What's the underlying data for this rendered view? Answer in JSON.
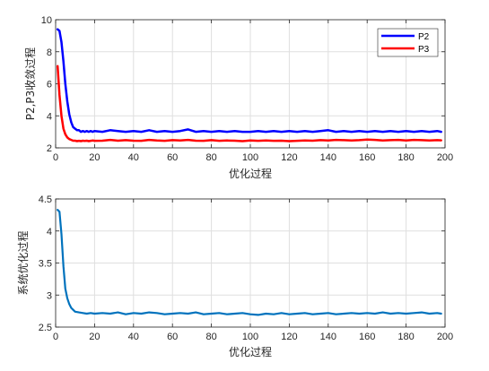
{
  "chart_data": [
    {
      "type": "line",
      "title": "",
      "xlabel": "优化过程",
      "ylabel": "P2,P3收敛过程",
      "xlim": [
        0,
        200
      ],
      "ylim": [
        2,
        10
      ],
      "xticks": [
        0,
        20,
        40,
        60,
        80,
        100,
        120,
        140,
        160,
        180,
        200
      ],
      "yticks": [
        2,
        4,
        6,
        8,
        10
      ],
      "grid": true,
      "legend_position": "top-right",
      "series": [
        {
          "name": "P2",
          "color": "#0000ff",
          "x": [
            1,
            2,
            3,
            4,
            5,
            6,
            7,
            8,
            9,
            10,
            11,
            12,
            13,
            14,
            15,
            16,
            17,
            18,
            19,
            20,
            24,
            28,
            32,
            36,
            40,
            44,
            48,
            52,
            56,
            60,
            64,
            68,
            72,
            76,
            80,
            84,
            88,
            92,
            96,
            100,
            104,
            108,
            112,
            116,
            120,
            124,
            128,
            132,
            136,
            140,
            144,
            148,
            152,
            156,
            160,
            164,
            168,
            172,
            176,
            180,
            184,
            188,
            192,
            196,
            198
          ],
          "y": [
            9.4,
            9.3,
            8.6,
            7.4,
            6.0,
            4.9,
            4.1,
            3.6,
            3.3,
            3.2,
            3.1,
            3.1,
            3.0,
            3.05,
            3.0,
            3.05,
            3.0,
            3.05,
            3.0,
            3.05,
            3.0,
            3.1,
            3.05,
            3.0,
            3.05,
            3.0,
            3.1,
            3.0,
            3.05,
            3.0,
            3.05,
            3.15,
            3.0,
            3.05,
            3.0,
            3.05,
            3.0,
            3.05,
            3.0,
            3.0,
            3.05,
            3.0,
            3.05,
            3.0,
            3.05,
            3.0,
            3.05,
            3.0,
            3.05,
            3.1,
            3.0,
            3.05,
            3.0,
            3.05,
            3.0,
            3.05,
            3.0,
            3.05,
            3.0,
            3.05,
            3.0,
            3.05,
            3.0,
            3.05,
            3.0
          ]
        },
        {
          "name": "P3",
          "color": "#ff0000",
          "x": [
            1,
            2,
            3,
            4,
            5,
            6,
            7,
            8,
            9,
            10,
            11,
            12,
            13,
            14,
            15,
            16,
            17,
            18,
            19,
            20,
            24,
            28,
            32,
            36,
            40,
            44,
            48,
            52,
            56,
            60,
            64,
            68,
            72,
            76,
            80,
            84,
            88,
            92,
            96,
            100,
            104,
            108,
            112,
            116,
            120,
            124,
            128,
            132,
            136,
            140,
            144,
            148,
            152,
            156,
            160,
            164,
            168,
            172,
            176,
            180,
            184,
            188,
            192,
            196,
            198
          ],
          "y": [
            7.1,
            5.3,
            4.0,
            3.2,
            2.85,
            2.65,
            2.55,
            2.5,
            2.45,
            2.45,
            2.42,
            2.44,
            2.42,
            2.45,
            2.43,
            2.45,
            2.42,
            2.44,
            2.46,
            2.44,
            2.45,
            2.5,
            2.45,
            2.48,
            2.45,
            2.44,
            2.5,
            2.46,
            2.44,
            2.48,
            2.46,
            2.5,
            2.45,
            2.44,
            2.48,
            2.44,
            2.46,
            2.45,
            2.42,
            2.46,
            2.44,
            2.46,
            2.44,
            2.45,
            2.42,
            2.44,
            2.46,
            2.45,
            2.48,
            2.46,
            2.5,
            2.48,
            2.46,
            2.48,
            2.52,
            2.5,
            2.46,
            2.48,
            2.5,
            2.46,
            2.5,
            2.48,
            2.46,
            2.48,
            2.47
          ]
        }
      ]
    },
    {
      "type": "line",
      "title": "",
      "xlabel": "优化过程",
      "ylabel": "系统优化过程",
      "xlim": [
        0,
        200
      ],
      "ylim": [
        2.5,
        4.5
      ],
      "xticks": [
        0,
        20,
        40,
        60,
        80,
        100,
        120,
        140,
        160,
        180,
        200
      ],
      "yticks": [
        2.5,
        3,
        3.5,
        4,
        4.5
      ],
      "grid": true,
      "legend_position": "none",
      "series": [
        {
          "color": "#0072bd",
          "x": [
            1,
            2,
            3,
            4,
            5,
            6,
            7,
            8,
            9,
            10,
            12,
            14,
            16,
            18,
            20,
            24,
            28,
            32,
            36,
            40,
            44,
            48,
            52,
            56,
            60,
            64,
            68,
            72,
            76,
            80,
            84,
            88,
            92,
            96,
            100,
            104,
            108,
            112,
            116,
            120,
            124,
            128,
            132,
            136,
            140,
            144,
            148,
            152,
            156,
            160,
            164,
            168,
            172,
            176,
            180,
            184,
            188,
            192,
            196,
            198
          ],
          "y": [
            4.33,
            4.3,
            3.95,
            3.45,
            3.1,
            2.95,
            2.86,
            2.8,
            2.77,
            2.74,
            2.73,
            2.72,
            2.71,
            2.72,
            2.71,
            2.72,
            2.71,
            2.73,
            2.7,
            2.72,
            2.71,
            2.73,
            2.72,
            2.7,
            2.71,
            2.72,
            2.71,
            2.73,
            2.7,
            2.71,
            2.72,
            2.7,
            2.71,
            2.72,
            2.7,
            2.69,
            2.71,
            2.7,
            2.72,
            2.7,
            2.71,
            2.72,
            2.7,
            2.71,
            2.72,
            2.7,
            2.71,
            2.72,
            2.71,
            2.72,
            2.71,
            2.73,
            2.71,
            2.72,
            2.71,
            2.72,
            2.73,
            2.71,
            2.72,
            2.71
          ]
        }
      ]
    }
  ]
}
